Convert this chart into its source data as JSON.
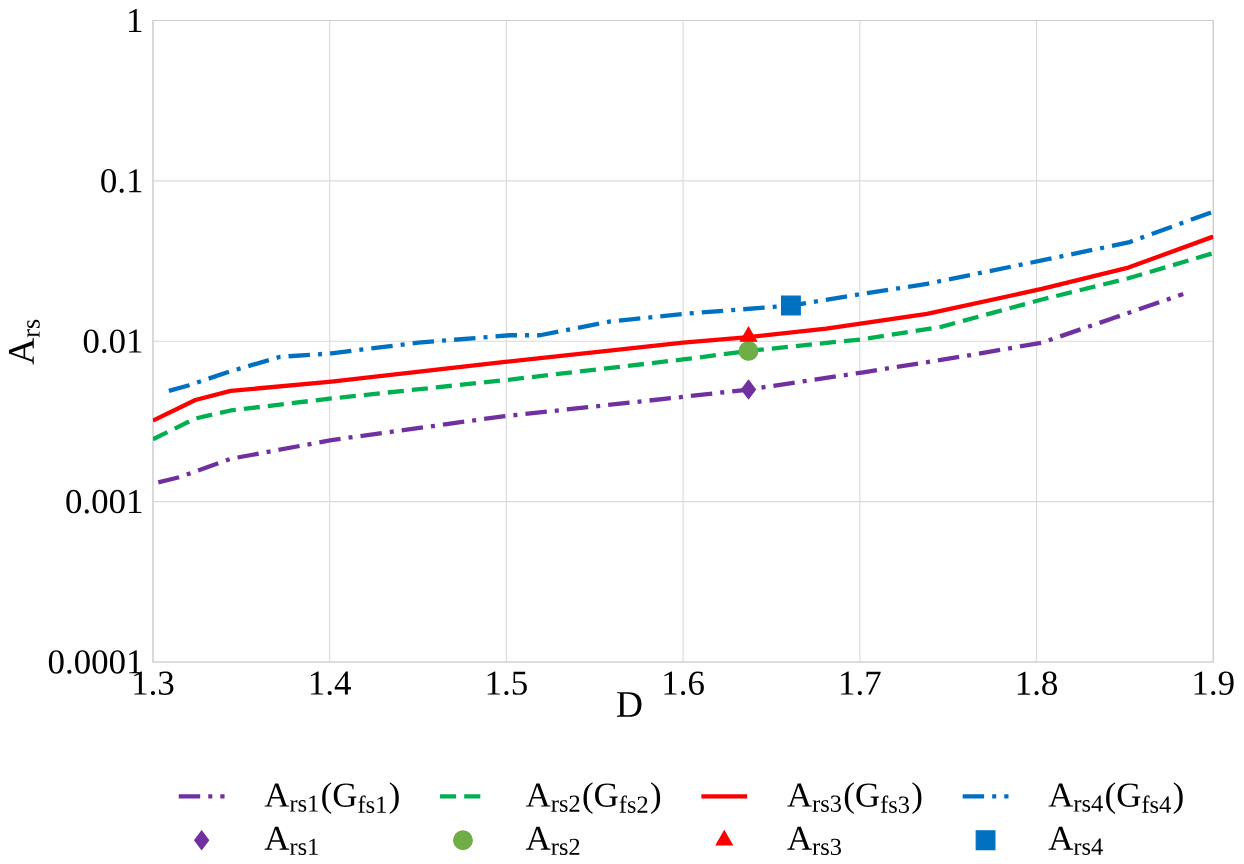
{
  "chart_data": {
    "type": "line",
    "xlabel": "D",
    "ylabel": "A$_{rs}$",
    "xlim": [
      1.3,
      1.9
    ],
    "xticks": [
      1.3,
      1.4,
      1.5,
      1.6,
      1.7,
      1.8,
      1.9
    ],
    "ylim": [
      0.0001,
      1
    ],
    "yticks": [
      0.0001,
      0.001,
      0.01,
      0.1,
      1
    ],
    "log": "y",
    "grid": true,
    "legend": "bottom",
    "series": [
      {
        "name": "A$_{rs1}$(G$_{fs1}$)",
        "color": "#7030a0",
        "line_style": "dashdot",
        "marker": "none",
        "x": [
          1.303,
          1.315,
          1.344,
          1.401,
          1.498,
          1.6,
          1.637,
          1.702,
          1.763,
          1.803,
          1.844,
          1.883
        ],
        "values": [
          0.00132,
          0.00142,
          0.00185,
          0.00242,
          0.0034,
          0.0045,
          0.005,
          0.0064,
          0.0082,
          0.0098,
          0.014,
          0.0197
        ]
      },
      {
        "name": "A$_{rs2}$(G$_{fs2}$)",
        "color": "#00b050",
        "line_style": "dashed",
        "marker": "none",
        "x": [
          1.3,
          1.324,
          1.344,
          1.401,
          1.498,
          1.6,
          1.637,
          1.702,
          1.746,
          1.803,
          1.852,
          1.9
        ],
        "values": [
          0.00245,
          0.0033,
          0.0037,
          0.0044,
          0.0057,
          0.0077,
          0.0087,
          0.0103,
          0.0123,
          0.0182,
          0.0247,
          0.0354
        ]
      },
      {
        "name": "A$_{rs3}$(G$_{fs3}$)",
        "color": "#ff0000",
        "line_style": "solid",
        "marker": "none",
        "x": [
          1.3,
          1.324,
          1.344,
          1.401,
          1.498,
          1.6,
          1.637,
          1.681,
          1.738,
          1.803,
          1.852,
          1.9
        ],
        "values": [
          0.0032,
          0.0043,
          0.0049,
          0.0056,
          0.0074,
          0.0098,
          0.0106,
          0.012,
          0.0148,
          0.0212,
          0.0288,
          0.0449
        ]
      },
      {
        "name": "A$_{rs4}$(G$_{fs4}$)",
        "color": "#0070c0",
        "line_style": "dashdot",
        "marker": "none",
        "x": [
          1.309,
          1.32,
          1.344,
          1.372,
          1.401,
          1.45,
          1.502,
          1.519,
          1.559,
          1.6,
          1.661,
          1.706,
          1.738,
          1.803,
          1.852,
          1.899
        ],
        "values": [
          0.0049,
          0.0053,
          0.0065,
          0.008,
          0.0084,
          0.0098,
          0.0109,
          0.0109,
          0.0133,
          0.0148,
          0.0167,
          0.0201,
          0.0228,
          0.0319,
          0.0413,
          0.0636
        ]
      },
      {
        "name": "A$_{rs1}$",
        "type": "scatter",
        "color": "#7030a0",
        "marker": "diamond",
        "x": [
          1.637
        ],
        "values": [
          0.005
        ]
      },
      {
        "name": "A$_{rs2}$",
        "type": "scatter",
        "color": "#70ad47",
        "marker": "circle",
        "x": [
          1.637
        ],
        "values": [
          0.0087
        ]
      },
      {
        "name": "A$_{rs3}$",
        "type": "scatter",
        "color": "#ff0000",
        "marker": "triangle",
        "x": [
          1.637
        ],
        "values": [
          0.0107
        ]
      },
      {
        "name": "A$_{rs4}$",
        "type": "scatter",
        "color": "#0070c0",
        "marker": "square",
        "x": [
          1.661
        ],
        "values": [
          0.0167
        ]
      }
    ]
  }
}
